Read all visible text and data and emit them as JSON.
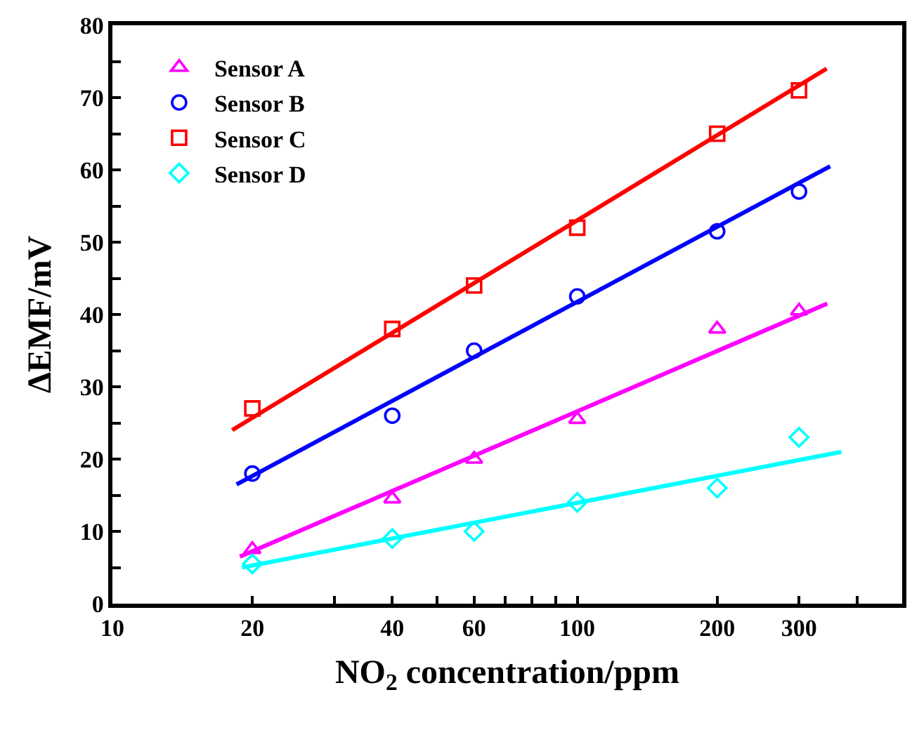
{
  "chart_data": {
    "type": "scatter",
    "xlabel": "NO$_{2}$ concentration/ppm",
    "ylabel": "ΔEMF/mV",
    "log": "x",
    "xlim": [
      10,
      500
    ],
    "xticks": [
      10,
      20,
      {
        "value": 30,
        "label": null
      },
      40,
      {
        "value": 50,
        "label": null
      },
      60,
      {
        "value": 70,
        "label": null
      },
      {
        "value": 80,
        "label": null
      },
      {
        "value": 90,
        "label": null
      },
      100,
      200,
      300,
      {
        "value": 400,
        "label": null
      }
    ],
    "ylim": [
      0,
      80
    ],
    "yticks": [
      0,
      {
        "value": 5,
        "label": null
      },
      10,
      {
        "value": 15,
        "label": null
      },
      20,
      {
        "value": 25,
        "label": null
      },
      30,
      {
        "value": 35,
        "label": null
      },
      40,
      {
        "value": 45,
        "label": null
      },
      50,
      {
        "value": 55,
        "label": null
      },
      60,
      {
        "value": 65,
        "label": null
      },
      70,
      {
        "value": 75,
        "label": null
      },
      80
    ],
    "grid": false,
    "legend": "top left",
    "x": [
      20,
      40,
      60,
      100,
      200,
      300
    ],
    "series": [
      {
        "name": "Sensor A",
        "color": "#ff00ff",
        "marker": "triangle",
        "values": [
          7.5,
          14.5,
          20,
          25.5,
          38,
          40.5
        ]
      },
      {
        "name": "Sensor B",
        "color": "#0000ff",
        "marker": "circle",
        "values": [
          18,
          26,
          35,
          42.5,
          51.5,
          57
        ]
      },
      {
        "name": "Sensor C",
        "color": "#ff0000",
        "marker": "square",
        "values": [
          27,
          38,
          44,
          52,
          65,
          71
        ]
      },
      {
        "name": "Sensor D",
        "color": "#00ffff",
        "marker": "diamond",
        "values": [
          5.5,
          9,
          10,
          14,
          16,
          23
        ]
      },
      {
        "type": "line",
        "color": "#ff00ff",
        "marker": "none",
        "x": [
          18.8,
          345
        ],
        "values": [
          6.5,
          41.5
        ]
      },
      {
        "type": "line",
        "color": "#0000ff",
        "marker": "none",
        "x": [
          18.5,
          350
        ],
        "values": [
          16.5,
          60.5
        ]
      },
      {
        "type": "line",
        "color": "#ff0000",
        "marker": "none",
        "x": [
          18.1,
          344
        ],
        "values": [
          24,
          74
        ]
      },
      {
        "type": "line",
        "color": "#00ffff",
        "marker": "none",
        "x": [
          19,
          370
        ],
        "values": [
          5,
          21
        ]
      }
    ]
  }
}
